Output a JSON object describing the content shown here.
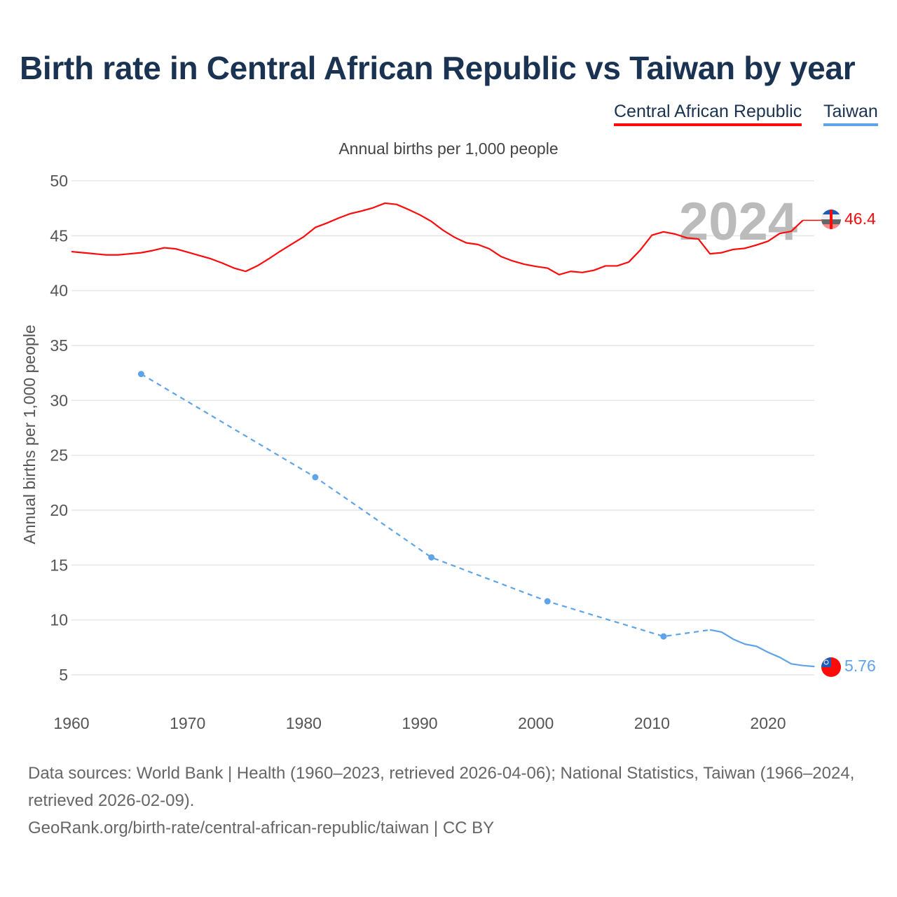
{
  "chart_data": {
    "type": "line",
    "title": "Birth rate in Central African Republic vs Taiwan by year",
    "subtitle": "Annual births per 1,000 people",
    "ylabel": "Annual births per 1,000 people",
    "xlabel": "",
    "xlim": [
      1960,
      2024
    ],
    "ylim": [
      5,
      50
    ],
    "x_ticks": [
      1960,
      1970,
      1980,
      1990,
      2000,
      2010,
      2020
    ],
    "y_ticks": [
      5,
      10,
      15,
      20,
      25,
      30,
      35,
      40,
      45,
      50
    ],
    "grid": true,
    "legend_position": "top-right",
    "year_overlay": "2024",
    "series": [
      {
        "name": "Central African Republic",
        "color": "#ff0a0a",
        "end_label": "46.4",
        "flag": "central-african-republic-flag",
        "x": [
          1960,
          1961,
          1962,
          1963,
          1964,
          1965,
          1966,
          1967,
          1968,
          1969,
          1970,
          1971,
          1972,
          1973,
          1974,
          1975,
          1976,
          1977,
          1978,
          1979,
          1980,
          1981,
          1982,
          1983,
          1984,
          1985,
          1986,
          1987,
          1988,
          1989,
          1990,
          1991,
          1992,
          1993,
          1994,
          1995,
          1996,
          1997,
          1998,
          1999,
          2000,
          2001,
          2002,
          2003,
          2004,
          2005,
          2006,
          2007,
          2008,
          2009,
          2010,
          2011,
          2012,
          2013,
          2014,
          2015,
          2016,
          2017,
          2018,
          2019,
          2020,
          2021,
          2022,
          2023
        ],
        "y": [
          43.55,
          43.45,
          43.35,
          43.25,
          43.25,
          43.35,
          43.45,
          43.65,
          43.9,
          43.8,
          43.5,
          43.2,
          42.9,
          42.5,
          42.05,
          41.75,
          42.25,
          42.9,
          43.6,
          44.25,
          44.9,
          45.75,
          46.15,
          46.6,
          47.0,
          47.25,
          47.55,
          47.96,
          47.85,
          47.4,
          46.9,
          46.3,
          45.5,
          44.85,
          44.35,
          44.2,
          43.8,
          43.1,
          42.7,
          42.4,
          42.2,
          42.05,
          41.45,
          41.75,
          41.65,
          41.85,
          42.25,
          42.25,
          42.6,
          43.7,
          45.05,
          45.35,
          45.15,
          44.8,
          44.7,
          43.35,
          43.45,
          43.75,
          43.85,
          44.15,
          44.5,
          45.2,
          45.4,
          46.4
        ]
      },
      {
        "name": "Taiwan",
        "color": "#5fa3e8",
        "end_label": "5.76",
        "flag": "taiwan-flag",
        "sparse_points": {
          "x": [
            1966,
            1981,
            1991,
            2001,
            2011
          ],
          "y": [
            32.4,
            23.0,
            15.7,
            11.7,
            8.5
          ]
        },
        "x": [
          2015,
          2016,
          2017,
          2018,
          2019,
          2020,
          2021,
          2022,
          2023,
          2024
        ],
        "y": [
          9.1,
          8.9,
          8.25,
          7.8,
          7.6,
          7.05,
          6.6,
          6.0,
          5.85,
          5.76
        ]
      }
    ]
  },
  "footer": {
    "sources": "Data sources: World Bank | Health (1960–2023, retrieved 2026-04-06); National Statistics, Taiwan (1966–2024, retrieved 2026-02-09).",
    "link": "GeoRank.org/birth-rate/central-african-republic/taiwan | CC BY"
  }
}
